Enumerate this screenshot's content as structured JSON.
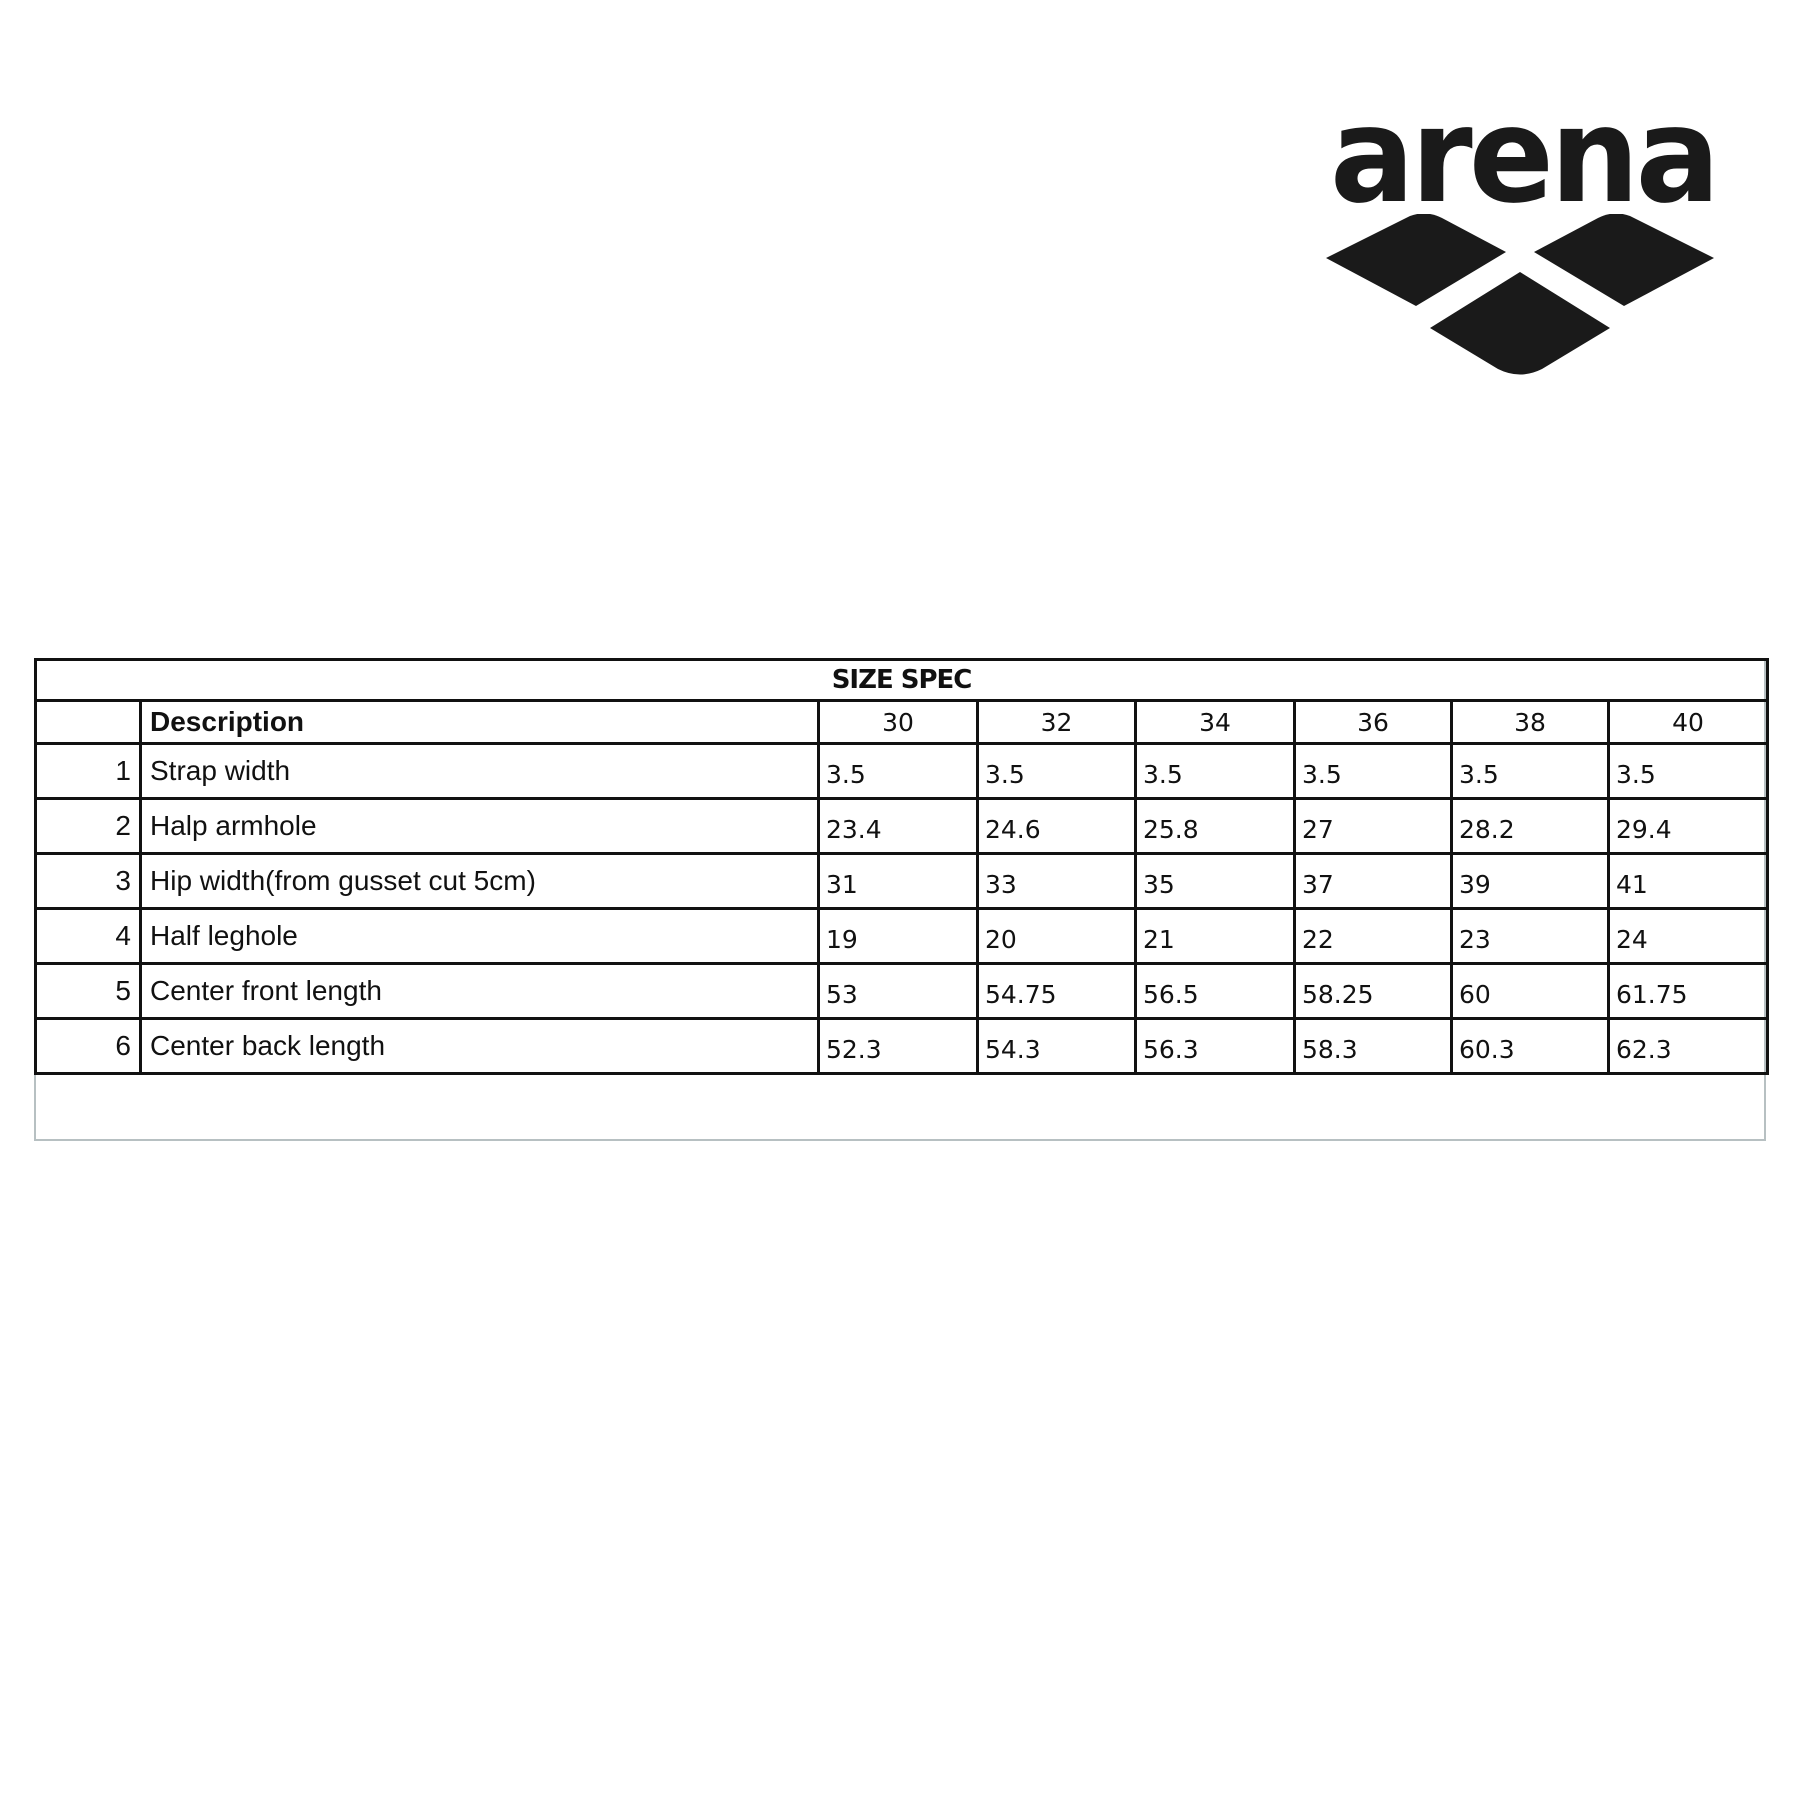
{
  "logo": {
    "text": "arena"
  },
  "table": {
    "title": "SIZE SPEC",
    "description_header": "Description",
    "sizes": [
      "30",
      "32",
      "34",
      "36",
      "38",
      "40"
    ],
    "rows": [
      {
        "no": "1",
        "description": "Strap width",
        "values": [
          "3.5",
          "3.5",
          "3.5",
          "3.5",
          "3.5",
          "3.5"
        ]
      },
      {
        "no": "2",
        "description": "Halp armhole",
        "values": [
          "23.4",
          "24.6",
          "25.8",
          "27",
          "28.2",
          "29.4"
        ]
      },
      {
        "no": "3",
        "description": "Hip width(from gusset cut 5cm)",
        "values": [
          "31",
          "33",
          "35",
          "37",
          "39",
          "41"
        ]
      },
      {
        "no": "4",
        "description": "Half leghole",
        "values": [
          "19",
          "20",
          "21",
          "22",
          "23",
          "24"
        ]
      },
      {
        "no": "5",
        "description": "Center front length",
        "values": [
          "53",
          "54.75",
          "56.5",
          "58.25",
          "60",
          "61.75"
        ]
      },
      {
        "no": "6",
        "description": "Center back length",
        "values": [
          "52.3",
          "54.3",
          "56.3",
          "58.3",
          "60.3",
          "62.3"
        ]
      }
    ]
  }
}
